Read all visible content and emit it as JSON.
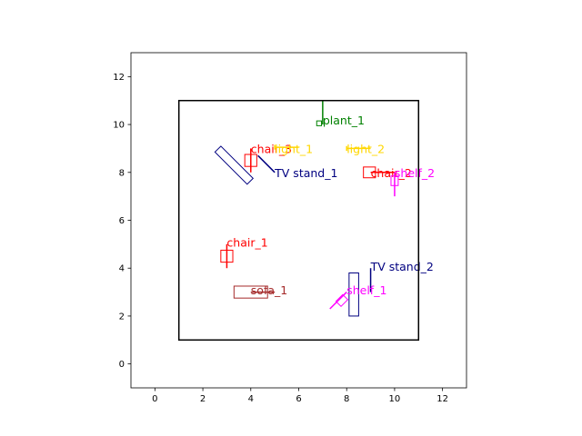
{
  "plot": {
    "xlim": [
      -1,
      13
    ],
    "ylim": [
      -1,
      13
    ],
    "xticks": [
      0,
      2,
      4,
      6,
      8,
      10,
      12
    ],
    "yticks": [
      0,
      2,
      4,
      6,
      8,
      10,
      12
    ]
  },
  "room": {
    "x0": 1,
    "y0": 1,
    "x1": 11,
    "y1": 11,
    "color": "#000000"
  },
  "objects": [
    {
      "name": "plant_1",
      "color": "#008000",
      "label": [
        7.0,
        10.0
      ],
      "shapes": [
        {
          "kind": "rect",
          "cx": 6.85,
          "cy": 10.05,
          "w": 0.2,
          "h": 0.2,
          "angle": 0
        },
        {
          "kind": "line",
          "pts": [
            [
              7.0,
              10.0
            ],
            [
              7.0,
              11.0
            ]
          ]
        }
      ]
    },
    {
      "name": "chair_3",
      "color": "#ff0000",
      "label": [
        4.0,
        8.8
      ],
      "shapes": [
        {
          "kind": "rect",
          "cx": 4.0,
          "cy": 8.5,
          "w": 0.5,
          "h": 0.5,
          "angle": 0
        },
        {
          "kind": "line",
          "pts": [
            [
              4.0,
              8.0
            ],
            [
              4.0,
              9.0
            ]
          ]
        }
      ]
    },
    {
      "name": "light_1",
      "color": "#ffd700",
      "label": [
        5.0,
        8.8
      ],
      "shapes": [
        {
          "kind": "line",
          "pts": [
            [
              5.0,
              9.05
            ],
            [
              6.0,
              9.05
            ]
          ]
        },
        {
          "kind": "line",
          "pts": [
            [
              5.0,
              8.95
            ],
            [
              5.0,
              9.15
            ]
          ]
        }
      ]
    },
    {
      "name": "light_2",
      "color": "#ffd700",
      "label": [
        8.0,
        8.8
      ],
      "shapes": [
        {
          "kind": "line",
          "pts": [
            [
              8.0,
              9.0
            ],
            [
              9.0,
              9.0
            ]
          ]
        },
        {
          "kind": "line",
          "pts": [
            [
              8.0,
              8.9
            ],
            [
              8.0,
              9.1
            ]
          ]
        }
      ]
    },
    {
      "name": "TV stand_1",
      "color": "#000080",
      "label": [
        5.0,
        7.8
      ],
      "shapes": [
        {
          "kind": "rect",
          "cx": 3.3,
          "cy": 8.3,
          "w": 1.9,
          "h": 0.35,
          "angle": -45
        },
        {
          "kind": "line",
          "pts": [
            [
              4.3,
              8.7
            ],
            [
              5.0,
              8.0
            ]
          ]
        }
      ]
    },
    {
      "name": "chair_2",
      "color": "#ff0000",
      "label": [
        9.0,
        7.8
      ],
      "shapes": [
        {
          "kind": "rect",
          "cx": 8.95,
          "cy": 8.0,
          "w": 0.5,
          "h": 0.45,
          "angle": 0
        },
        {
          "kind": "line",
          "pts": [
            [
              9.0,
              8.0
            ],
            [
              10.0,
              8.0
            ]
          ]
        }
      ]
    },
    {
      "name": "shelf_2",
      "color": "#ff00ff",
      "label": [
        10.0,
        7.8
      ],
      "shapes": [
        {
          "kind": "rect",
          "cx": 10.0,
          "cy": 7.65,
          "w": 0.3,
          "h": 0.4,
          "angle": 0
        },
        {
          "kind": "line",
          "pts": [
            [
              10.0,
              7.0
            ],
            [
              10.0,
              8.0
            ]
          ]
        }
      ]
    },
    {
      "name": "chair_1",
      "color": "#ff0000",
      "label": [
        3.0,
        4.9
      ],
      "shapes": [
        {
          "kind": "rect",
          "cx": 3.0,
          "cy": 4.5,
          "w": 0.5,
          "h": 0.5,
          "angle": 0
        },
        {
          "kind": "line",
          "pts": [
            [
              3.0,
              4.0
            ],
            [
              3.0,
              5.0
            ]
          ]
        }
      ]
    },
    {
      "name": "TV stand_2",
      "color": "#000080",
      "label": [
        9.0,
        3.9
      ],
      "shapes": [
        {
          "kind": "rect",
          "cx": 8.3,
          "cy": 2.9,
          "w": 0.4,
          "h": 1.8,
          "angle": 0
        },
        {
          "kind": "line",
          "pts": [
            [
              9.0,
              3.0
            ],
            [
              9.0,
              4.0
            ]
          ]
        }
      ]
    },
    {
      "name": "sofa_1",
      "color": "#a52a2a",
      "label": [
        4.0,
        2.9
      ],
      "shapes": [
        {
          "kind": "rect",
          "cx": 4.0,
          "cy": 3.0,
          "w": 1.4,
          "h": 0.5,
          "angle": 0
        },
        {
          "kind": "line",
          "pts": [
            [
              4.0,
              3.0
            ],
            [
              5.0,
              3.0
            ]
          ]
        }
      ]
    },
    {
      "name": "shelf_1",
      "color": "#ff00ff",
      "label": [
        8.0,
        2.9
      ],
      "shapes": [
        {
          "kind": "rect",
          "cx": 7.8,
          "cy": 2.65,
          "w": 0.4,
          "h": 0.3,
          "angle": 45
        },
        {
          "kind": "line",
          "pts": [
            [
              7.3,
              2.3
            ],
            [
              8.0,
              3.0
            ]
          ]
        }
      ]
    }
  ]
}
